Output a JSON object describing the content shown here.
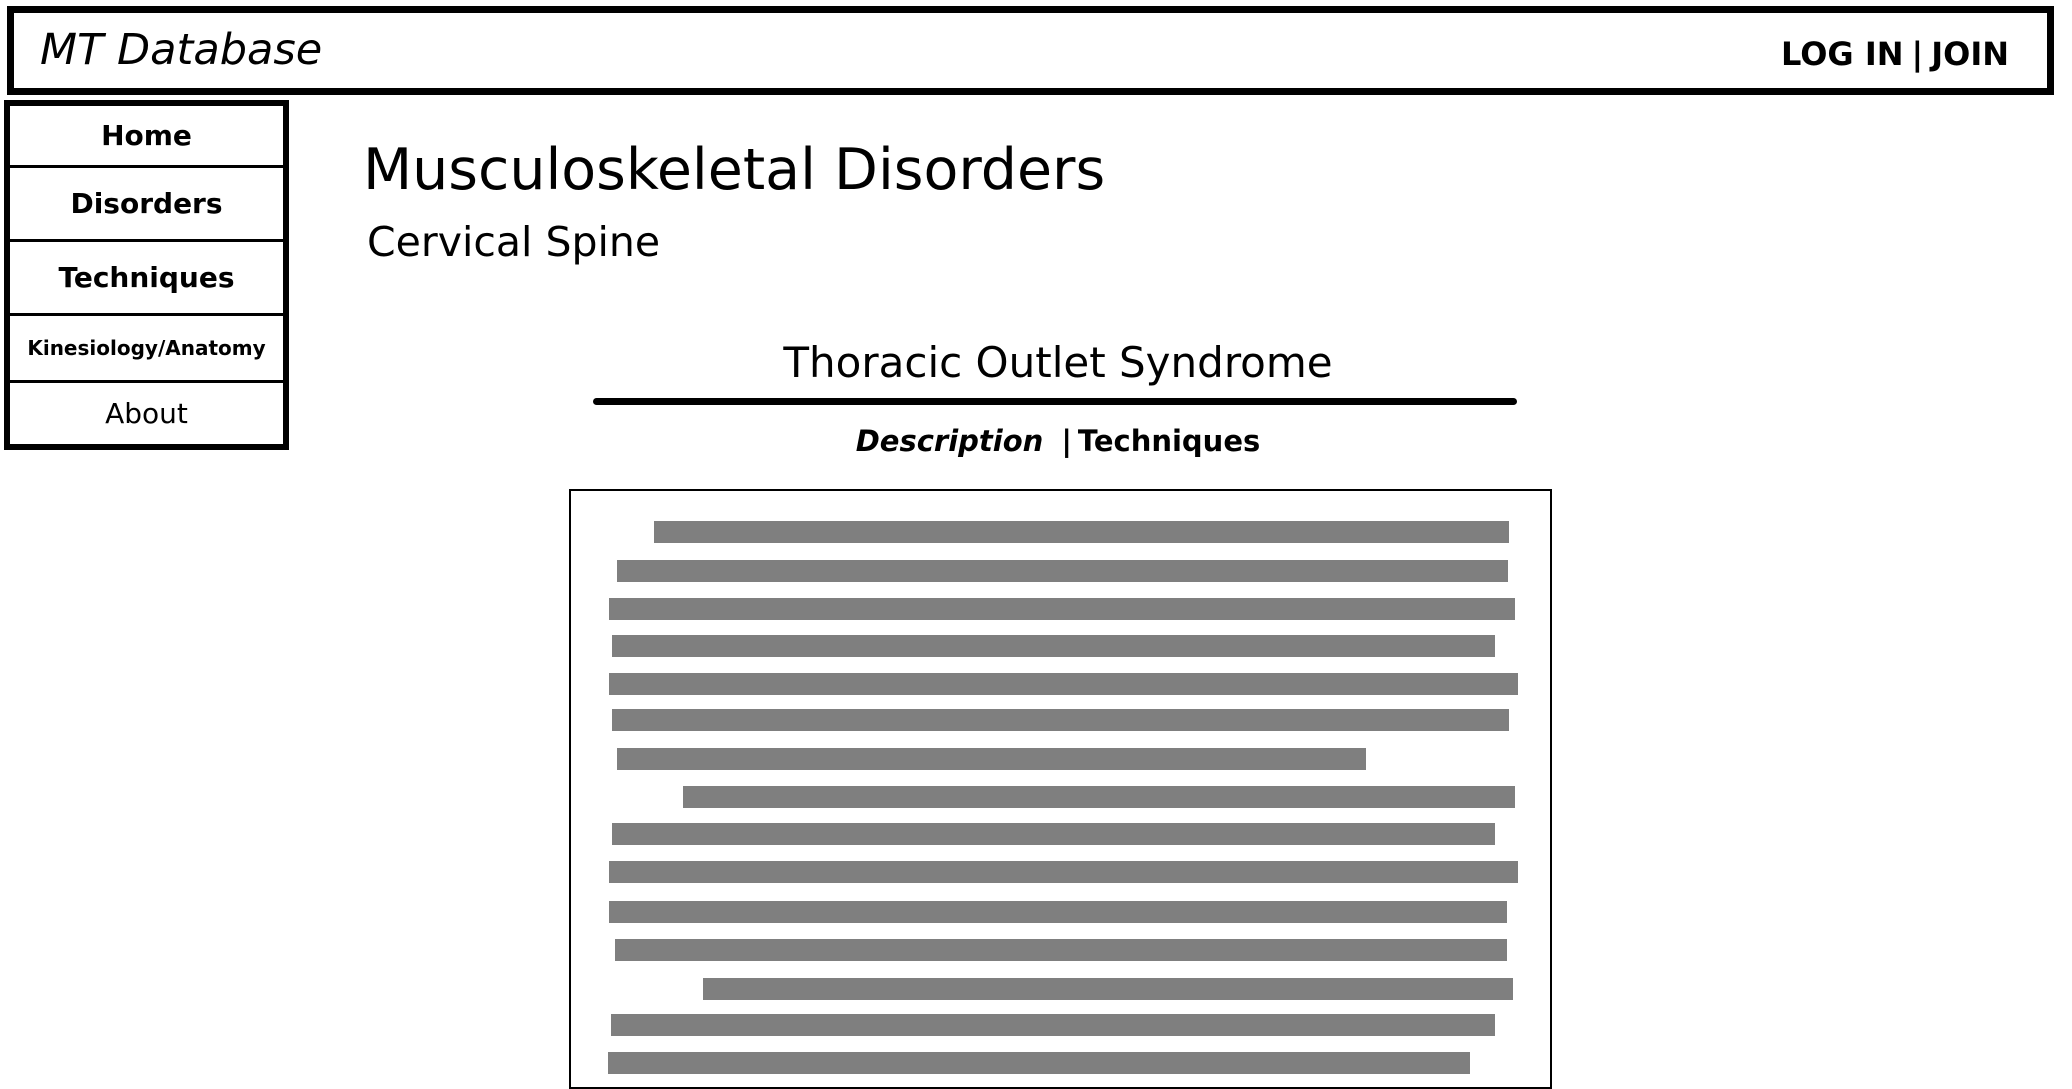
{
  "header": {
    "brand": "MT Database",
    "login_label": "LOG IN",
    "separator": "|",
    "join_label": "JOIN"
  },
  "sidebar": {
    "items": [
      {
        "label": "Home"
      },
      {
        "label": "Disorders"
      },
      {
        "label": "Techniques"
      },
      {
        "label": "Kinesiology/Anatomy"
      },
      {
        "label": "About"
      }
    ]
  },
  "main": {
    "title": "Musculoskeletal Disorders",
    "subtitle": "Cervical Spine",
    "article": {
      "title": "Thoracic Outlet Syndrome",
      "tabs": [
        {
          "label": "Description",
          "active": true
        },
        {
          "label": "Techniques",
          "active": false
        }
      ],
      "tab_separator": "|",
      "placeholder_fill_color": "#7f7f7f"
    }
  }
}
